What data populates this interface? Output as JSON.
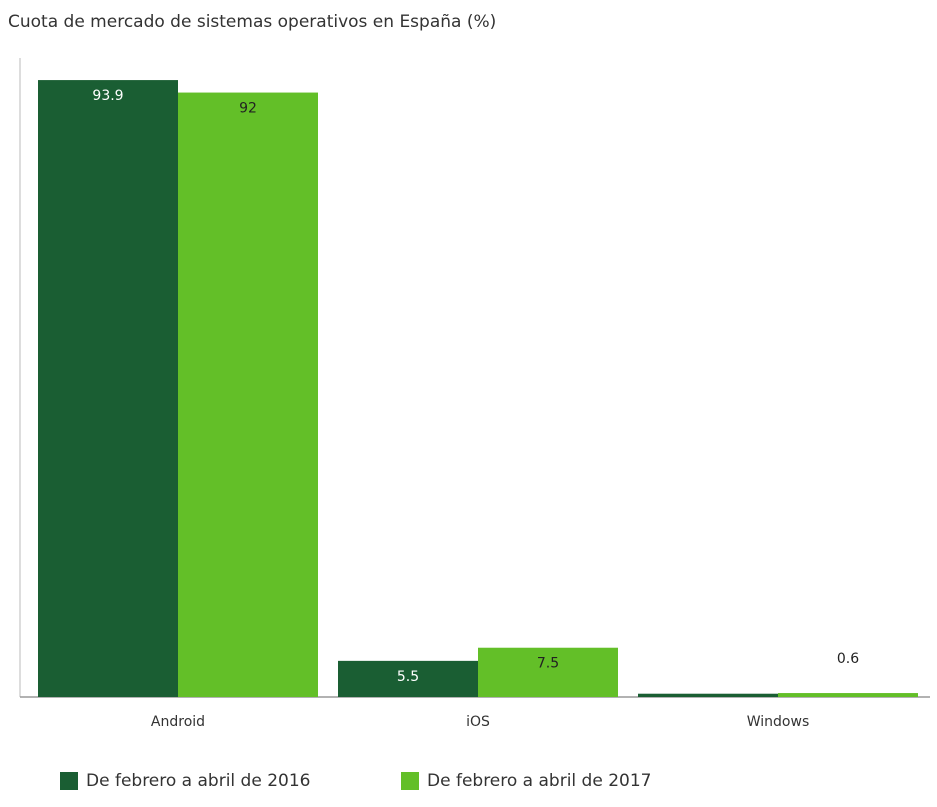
{
  "chart_data": {
    "type": "bar",
    "title": "Cuota de mercado de sistemas operativos en España (%)",
    "categories": [
      "Android",
      "iOS",
      "Windows"
    ],
    "series": [
      {
        "name": "De febrero a abril de 2016",
        "color": "#1a5e33",
        "values": [
          93.9,
          5.5,
          0.5
        ],
        "labels": [
          "93.9",
          "5.5",
          ""
        ]
      },
      {
        "name": "De febrero a abril de 2017",
        "color": "#63bf28",
        "values": [
          92,
          7.5,
          0.6
        ],
        "labels": [
          "92",
          "7.5",
          "0.6"
        ]
      }
    ],
    "ylim": [
      0,
      100
    ],
    "grid": false,
    "legend": "bottom-left",
    "xlabel": "",
    "ylabel": ""
  }
}
